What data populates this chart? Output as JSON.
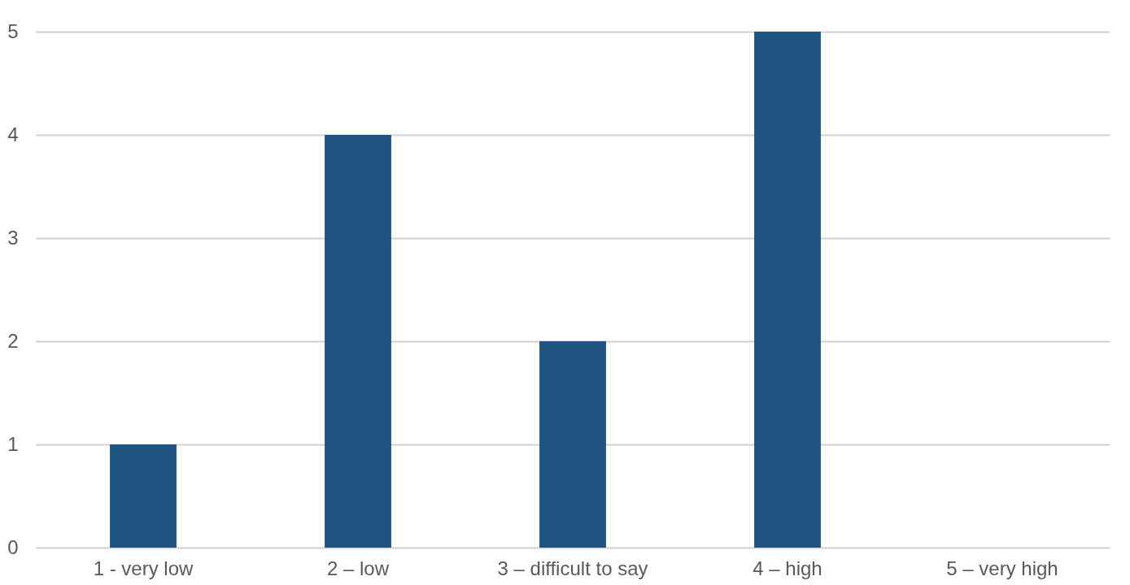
{
  "chart_data": {
    "type": "bar",
    "categories": [
      "1 - very low",
      "2 – low",
      "3 – difficult to say",
      "4 –  high",
      "5 – very high"
    ],
    "values": [
      1,
      4,
      2,
      5,
      0
    ],
    "color": "#1f5380",
    "ylim": [
      0,
      5
    ],
    "yticks": [
      0,
      1,
      2,
      3,
      4,
      5
    ],
    "grid": "y"
  }
}
